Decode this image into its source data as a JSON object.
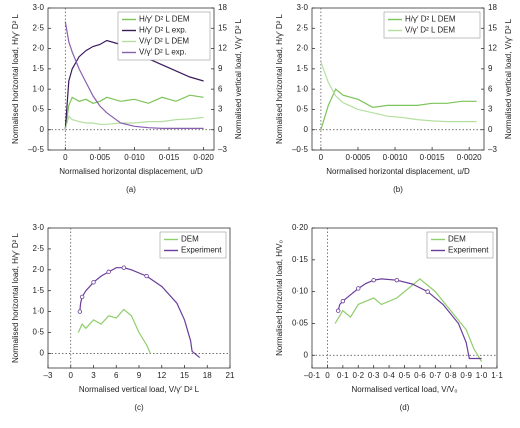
{
  "chart_data": [
    {
      "type": "line",
      "caption": "(a)",
      "xlabel": "Normalised horizontal displacement, u/D",
      "ylabel": "Normalised horizontal load, H/γ′ D² L",
      "y2label": "Normalised vertical load, V/γ′ D² L",
      "xlim": [
        -0.0025,
        0.0215
      ],
      "xticks": [
        0,
        {
          "value": 0.005,
          "label": "0·005"
        },
        {
          "value": 0.01,
          "label": "0·010"
        },
        {
          "value": 0.015,
          "label": "0·015"
        },
        {
          "value": 0.02,
          "label": "0·020"
        }
      ],
      "ylim": [
        -0.5,
        3.0
      ],
      "yticks": [
        {
          "value": -0.5,
          "label": "–0·5"
        },
        0,
        {
          "value": 0.5,
          "label": "0·5"
        },
        {
          "value": 1,
          "label": "1·0"
        },
        {
          "value": 1.5,
          "label": "1·5"
        },
        {
          "value": 2,
          "label": "2·0"
        },
        {
          "value": 2.5,
          "label": "2·5"
        },
        {
          "value": 3,
          "label": "3·0"
        }
      ],
      "y2lim": [
        -3,
        18
      ],
      "y2ticks": [
        {
          "value": -3,
          "label": "–3"
        },
        0,
        3,
        6,
        9,
        12,
        15,
        18
      ],
      "legend": "upper right",
      "x": [
        0,
        0.0005,
        0.001,
        0.002,
        0.003,
        0.004,
        0.005,
        0.006,
        0.008,
        0.01,
        0.012,
        0.014,
        0.016,
        0.018,
        0.02
      ],
      "series": [
        {
          "name": "H/γ′ D² L DEM",
          "color": "#7cc35a",
          "values": [
            0,
            0.6,
            0.8,
            0.7,
            0.75,
            0.65,
            0.7,
            0.8,
            0.7,
            0.75,
            0.65,
            0.8,
            0.7,
            0.85,
            0.8
          ]
        },
        {
          "name": "H/γ′ D² L exp.",
          "color": "#3b1a5e",
          "values": [
            0,
            1.2,
            1.5,
            1.8,
            1.95,
            2.05,
            2.1,
            2.2,
            2.1,
            1.95,
            1.75,
            1.6,
            1.45,
            1.3,
            1.2
          ]
        },
        {
          "name": "V/γ′ D² L DEM",
          "color": "#b5dfa0",
          "axis": "y2",
          "values": [
            0,
            2,
            1.5,
            1.2,
            1,
            1,
            0.8,
            0.8,
            1,
            1,
            1.2,
            1.2,
            1.5,
            1.6,
            1.8
          ]
        },
        {
          "name": "V/γ′ D² L exp.",
          "color": "#8a5fb0",
          "axis": "y2",
          "values": [
            16,
            13,
            11.5,
            9,
            7,
            5,
            3.5,
            2.5,
            1,
            0.5,
            0.3,
            0.2,
            0.2,
            0.2,
            0.2
          ]
        }
      ]
    },
    {
      "type": "line",
      "caption": "(b)",
      "xlabel": "Normalised horizontal displacement, u/D",
      "ylabel": "Normalised horizontal load, H/γ′ D² L",
      "y2label": "Normalised vertical load, V/γ′ D² L",
      "xlim": [
        -0.00012,
        0.0022
      ],
      "xticks": [
        0,
        {
          "value": 0.0005,
          "label": "0·0005"
        },
        {
          "value": 0.001,
          "label": "0·0010"
        },
        {
          "value": 0.0015,
          "label": "0·0015"
        },
        {
          "value": 0.002,
          "label": "0·0020"
        }
      ],
      "ylim": [
        -0.5,
        3.0
      ],
      "yticks": [
        {
          "value": -0.5,
          "label": "–0·5"
        },
        0,
        {
          "value": 0.5,
          "label": "0·5"
        },
        {
          "value": 1,
          "label": "1·0"
        },
        {
          "value": 1.5,
          "label": "1·5"
        },
        {
          "value": 2,
          "label": "2·0"
        },
        {
          "value": 2.5,
          "label": "2·5"
        },
        {
          "value": 3,
          "label": "3·0"
        }
      ],
      "y2lim": [
        -3,
        18
      ],
      "y2ticks": [
        {
          "value": -3,
          "label": "–3"
        },
        0,
        3,
        6,
        9,
        12,
        15,
        18
      ],
      "legend": "upper right",
      "x": [
        0,
        0.0001,
        0.0002,
        0.0003,
        0.0005,
        0.0007,
        0.0009,
        0.0011,
        0.0013,
        0.0015,
        0.0017,
        0.0019,
        0.0021
      ],
      "series": [
        {
          "name": "H/γ′ D² L DEM",
          "color": "#7cc35a",
          "values": [
            0,
            0.6,
            1.0,
            0.85,
            0.75,
            0.55,
            0.6,
            0.6,
            0.6,
            0.65,
            0.65,
            0.7,
            0.7
          ]
        },
        {
          "name": "V/γ′ D² L DEM",
          "color": "#b5dfa0",
          "axis": "y2",
          "values": [
            10,
            7,
            5,
            4,
            3,
            2.5,
            2,
            1.8,
            1.5,
            1.3,
            1.2,
            1.2,
            1.2
          ]
        }
      ]
    },
    {
      "type": "line",
      "caption": "(c)",
      "xlabel": "Normalised vertical load, V/γ′ D² L",
      "ylabel": "Normalised horizontal load, H/γ′ D² L",
      "xlim": [
        -3,
        21
      ],
      "xticks": [
        {
          "value": -3,
          "label": "–3"
        },
        0,
        3,
        6,
        9,
        12,
        15,
        18,
        21
      ],
      "ylim": [
        -0.35,
        3.0
      ],
      "yticks": [
        0,
        {
          "value": 0.5,
          "label": "0·5"
        },
        {
          "value": 1,
          "label": "1·0"
        },
        {
          "value": 1.5,
          "label": "1·5"
        },
        {
          "value": 2,
          "label": "2·0"
        },
        {
          "value": 2.5,
          "label": "2·5"
        },
        {
          "value": 3,
          "label": "3·0"
        }
      ],
      "legend": "upper right",
      "series": [
        {
          "name": "DEM",
          "color": "#8fce6c",
          "x": [
            1,
            1.5,
            2,
            3,
            4,
            5,
            6,
            7,
            8,
            8.5,
            9,
            10,
            10.5
          ],
          "values": [
            0.5,
            0.7,
            0.6,
            0.8,
            0.7,
            0.9,
            0.85,
            1.05,
            0.9,
            0.7,
            0.5,
            0.2,
            0
          ]
        },
        {
          "name": "Experiment",
          "color": "#6a3d9a",
          "x": [
            1.2,
            1.3,
            1.5,
            2,
            3,
            4,
            5,
            6,
            7,
            8,
            10,
            12,
            14,
            15,
            15.8,
            16,
            17
          ],
          "values": [
            1.0,
            1.2,
            1.35,
            1.5,
            1.7,
            1.85,
            1.95,
            2.05,
            2.05,
            2.0,
            1.85,
            1.6,
            1.2,
            0.8,
            0.3,
            0.05,
            -0.1
          ]
        }
      ]
    },
    {
      "type": "line",
      "caption": "(d)",
      "xlabel": "Normalised vertical load, V/V₀",
      "ylabel": "Normalised horizontal load, H/V₀",
      "xlim": [
        -0.1,
        1.1
      ],
      "xticks": [
        {
          "value": -0.1,
          "label": "–0·1"
        },
        0,
        {
          "value": 0.1,
          "label": "0·1"
        },
        {
          "value": 0.2,
          "label": "0·2"
        },
        {
          "value": 0.3,
          "label": "0·3"
        },
        {
          "value": 0.4,
          "label": "0·4"
        },
        {
          "value": 0.5,
          "label": "0·5"
        },
        {
          "value": 0.6,
          "label": "0·6"
        },
        {
          "value": 0.7,
          "label": "0·7"
        },
        {
          "value": 0.8,
          "label": "0·8"
        },
        {
          "value": 0.9,
          "label": "0·9"
        },
        {
          "value": 1,
          "label": "1·0"
        },
        {
          "value": 1.1,
          "label": "1·1"
        }
      ],
      "ylim": [
        -0.02,
        0.2
      ],
      "yticks": [
        0,
        {
          "value": 0.05,
          "label": "0·05"
        },
        {
          "value": 0.1,
          "label": "0·10"
        },
        {
          "value": 0.15,
          "label": "0·15"
        },
        {
          "value": 0.2,
          "label": "0·20"
        }
      ],
      "legend": "upper right",
      "series": [
        {
          "name": "DEM",
          "color": "#8fce6c",
          "x": [
            0.05,
            0.1,
            0.15,
            0.2,
            0.3,
            0.35,
            0.45,
            0.55,
            0.6,
            0.7,
            0.8,
            0.9,
            0.95,
            1.0
          ],
          "values": [
            0.05,
            0.07,
            0.06,
            0.08,
            0.09,
            0.08,
            0.09,
            0.11,
            0.12,
            0.1,
            0.07,
            0.04,
            0.01,
            -0.01
          ]
        },
        {
          "name": "Experiment",
          "color": "#6a3d9a",
          "x": [
            0.07,
            0.08,
            0.1,
            0.15,
            0.2,
            0.25,
            0.3,
            0.35,
            0.45,
            0.55,
            0.65,
            0.75,
            0.85,
            0.9,
            0.92,
            1.0
          ],
          "values": [
            0.07,
            0.08,
            0.085,
            0.095,
            0.105,
            0.113,
            0.118,
            0.12,
            0.118,
            0.112,
            0.1,
            0.08,
            0.05,
            0.02,
            -0.005,
            -0.005
          ]
        }
      ]
    }
  ]
}
